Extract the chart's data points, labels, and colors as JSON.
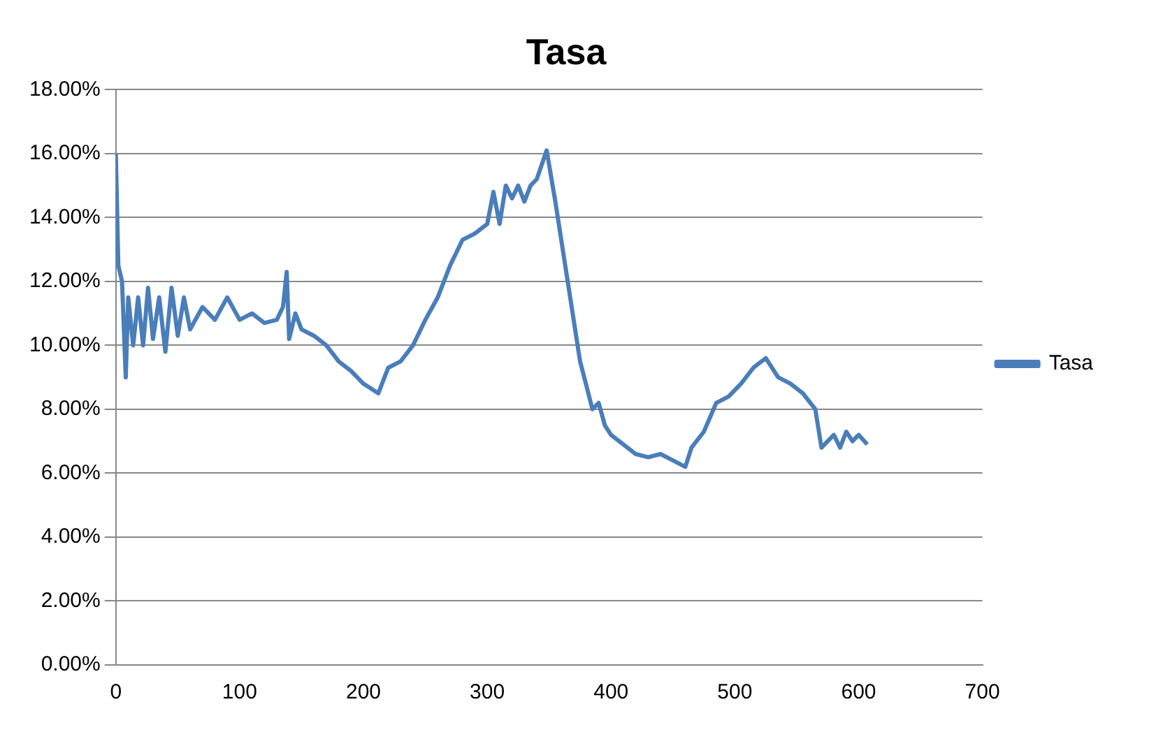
{
  "chart_data": {
    "type": "line",
    "title": "Tasa",
    "xlim": [
      0,
      700
    ],
    "xticks": [
      0,
      100,
      200,
      300,
      400,
      500,
      600,
      700
    ],
    "ylim": [
      0,
      18
    ],
    "yticks": [
      {
        "value": 0,
        "label": "0.00%"
      },
      {
        "value": 2,
        "label": "2.00%"
      },
      {
        "value": 4,
        "label": "4.00%"
      },
      {
        "value": 6,
        "label": "6.00%"
      },
      {
        "value": 8,
        "label": "8.00%"
      },
      {
        "value": 10,
        "label": "10.00%"
      },
      {
        "value": 12,
        "label": "12.00%"
      },
      {
        "value": 14,
        "label": "14.00%"
      },
      {
        "value": 16,
        "label": "16.00%"
      },
      {
        "value": 18,
        "label": "18.00%"
      }
    ],
    "grid": "y",
    "legend": "right",
    "marker": "none",
    "line_style": "solid",
    "series": [
      {
        "name": "Tasa",
        "color": "#4a7ebb",
        "x": [
          0,
          2,
          5,
          8,
          10,
          14,
          18,
          22,
          26,
          30,
          35,
          40,
          45,
          50,
          55,
          60,
          70,
          80,
          90,
          100,
          110,
          120,
          130,
          135,
          138,
          140,
          145,
          150,
          160,
          170,
          180,
          190,
          200,
          212,
          220,
          230,
          240,
          250,
          260,
          270,
          280,
          290,
          300,
          305,
          310,
          315,
          320,
          325,
          330,
          335,
          340,
          348,
          355,
          365,
          375,
          385,
          390,
          395,
          400,
          410,
          420,
          430,
          440,
          450,
          460,
          465,
          475,
          485,
          495,
          505,
          515,
          525,
          535,
          545,
          555,
          565,
          570,
          575,
          580,
          585,
          590,
          595,
          600,
          607
        ],
        "values": [
          16,
          12.5,
          12,
          9,
          11.5,
          10,
          11.5,
          10,
          11.8,
          10.2,
          11.5,
          9.8,
          11.8,
          10.3,
          11.5,
          10.5,
          11.2,
          10.8,
          11.5,
          10.8,
          11,
          10.7,
          10.8,
          11.2,
          12.3,
          10.2,
          11,
          10.5,
          10.3,
          10,
          9.5,
          9.2,
          8.8,
          8.5,
          9.3,
          9.5,
          10,
          10.8,
          11.5,
          12.5,
          13.3,
          13.5,
          13.8,
          14.8,
          13.8,
          15,
          14.6,
          15,
          14.5,
          15,
          15.2,
          16.1,
          14.5,
          12,
          9.5,
          8,
          8.2,
          7.5,
          7.2,
          6.9,
          6.6,
          6.5,
          6.6,
          6.4,
          6.2,
          6.8,
          7.3,
          8.2,
          8.4,
          8.8,
          9.3,
          9.6,
          9,
          8.8,
          8.5,
          8,
          6.8,
          7,
          7.2,
          6.8,
          7.3,
          7,
          7.2,
          6.9
        ]
      }
    ]
  }
}
